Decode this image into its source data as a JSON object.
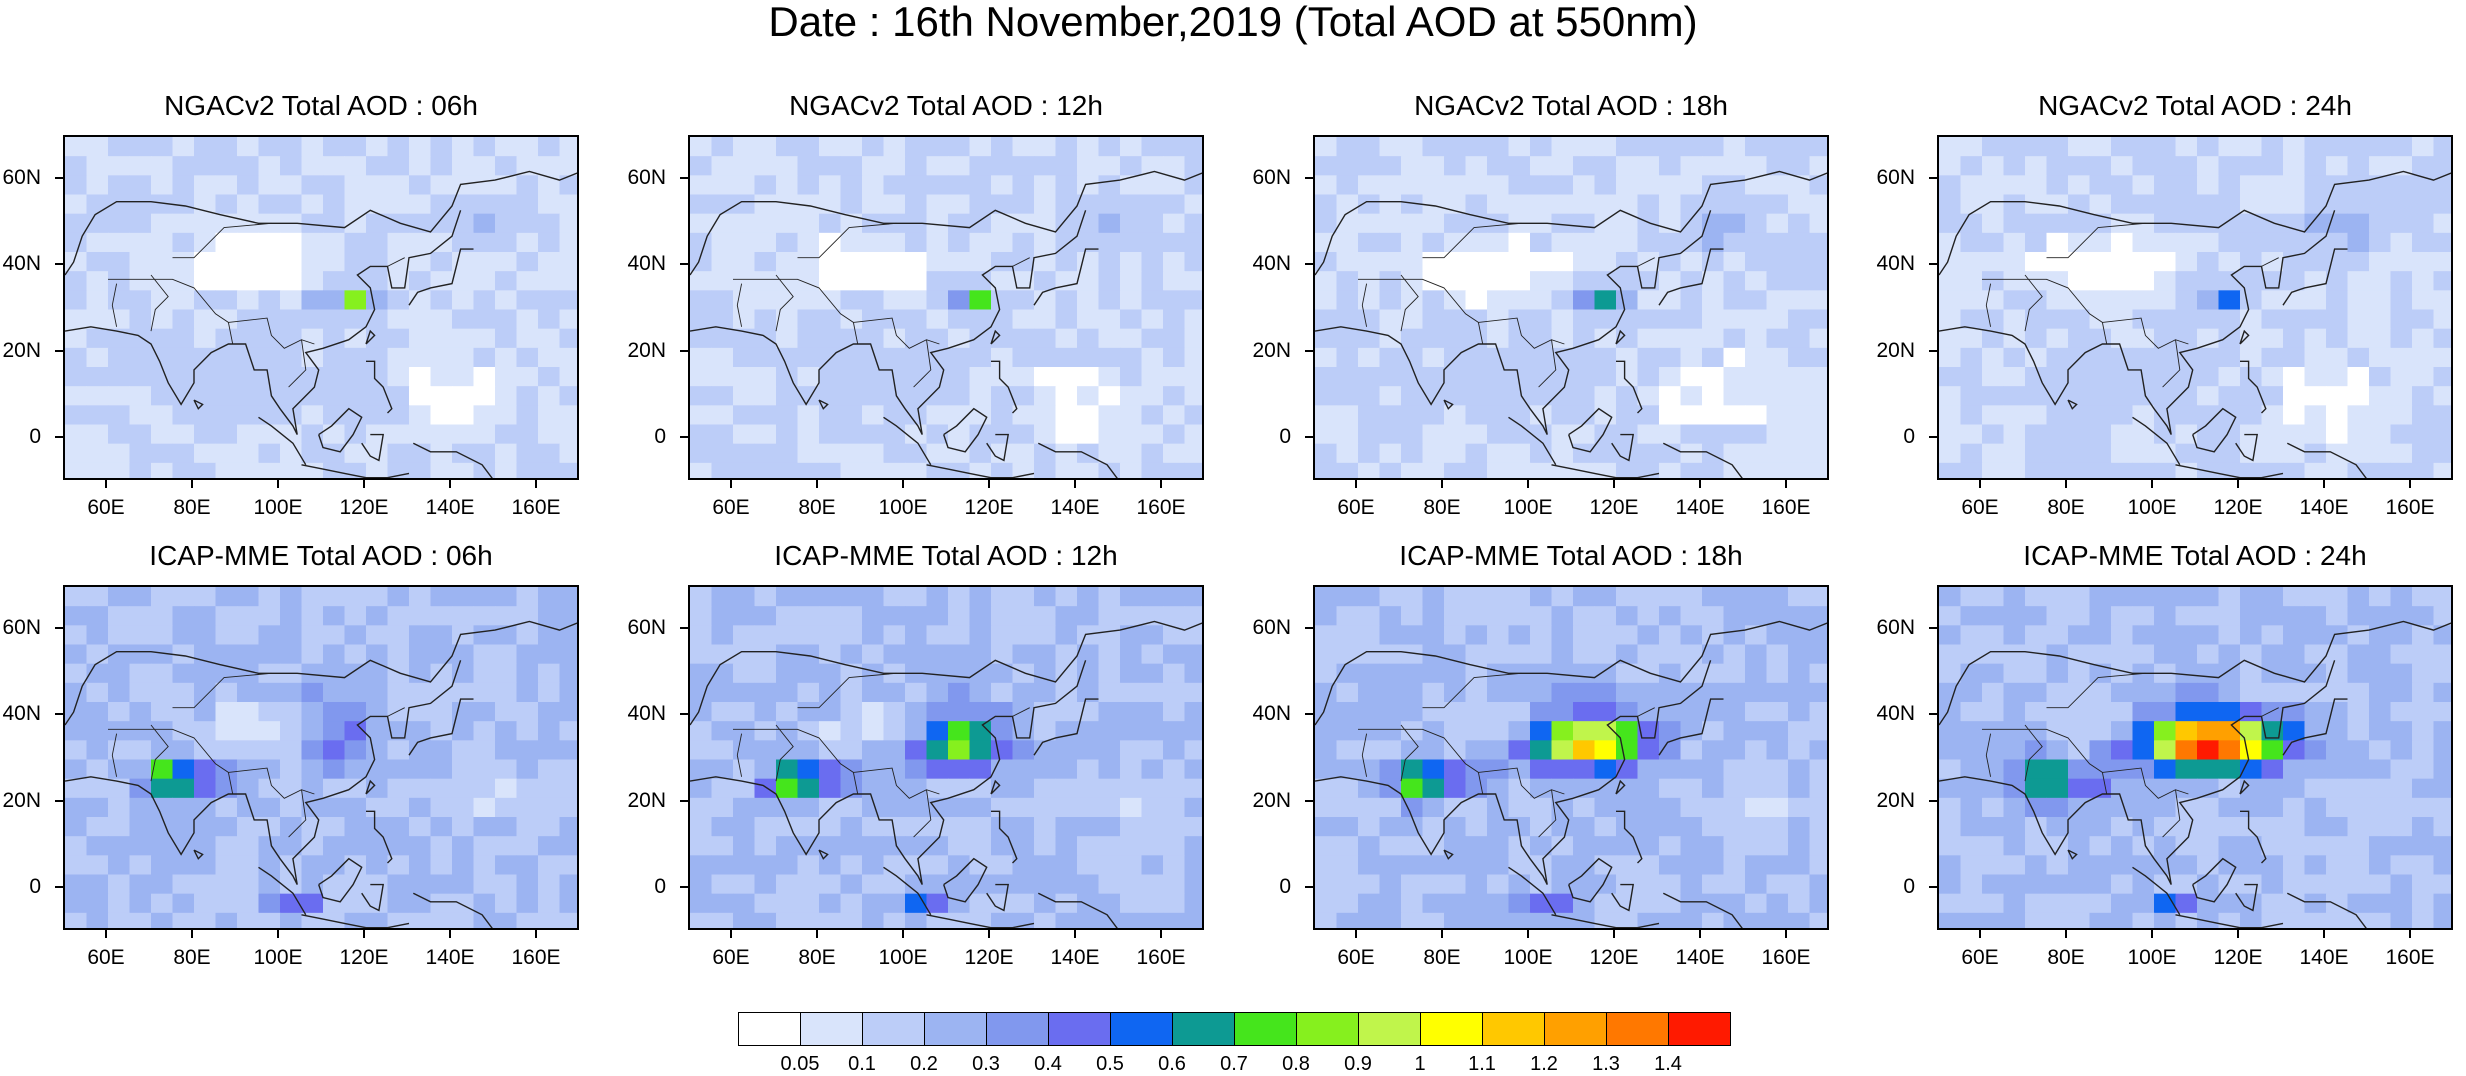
{
  "title": "Date : 16th November,2019 (Total AOD at 550nm)",
  "panels": [
    {
      "title": "NGACv2 Total AOD : 06h",
      "model": "NGACv2",
      "lead": "06h"
    },
    {
      "title": "NGACv2 Total AOD : 12h",
      "model": "NGACv2",
      "lead": "12h"
    },
    {
      "title": "NGACv2 Total AOD : 18h",
      "model": "NGACv2",
      "lead": "18h"
    },
    {
      "title": "NGACv2 Total AOD : 24h",
      "model": "NGACv2",
      "lead": "24h"
    },
    {
      "title": "ICAP-MME Total AOD : 06h",
      "model": "ICAP-MME",
      "lead": "06h"
    },
    {
      "title": "ICAP-MME Total AOD : 12h",
      "model": "ICAP-MME",
      "lead": "12h"
    },
    {
      "title": "ICAP-MME Total AOD : 18h",
      "model": "ICAP-MME",
      "lead": "18h"
    },
    {
      "title": "ICAP-MME Total AOD : 24h",
      "model": "ICAP-MME",
      "lead": "24h"
    }
  ],
  "axes": {
    "lon_range": [
      50,
      170
    ],
    "lat_range": [
      -10,
      70
    ],
    "lon_ticks": [
      "60E",
      "80E",
      "100E",
      "120E",
      "140E",
      "160E"
    ],
    "lat_ticks": [
      "60N",
      "40N",
      "20N",
      "0"
    ]
  },
  "colorbar": {
    "labels": [
      "0.05",
      "0.1",
      "0.2",
      "0.3",
      "0.4",
      "0.5",
      "0.6",
      "0.7",
      "0.8",
      "0.9",
      "1",
      "1.1",
      "1.2",
      "1.3",
      "1.4"
    ],
    "colors": [
      "#ffffff",
      "#d9e4fb",
      "#bccdf8",
      "#9cb4f2",
      "#8198ee",
      "#6a6df0",
      "#0f66f2",
      "#0d9a93",
      "#45e51c",
      "#86f01e",
      "#c0f54b",
      "#ffff00",
      "#ffc800",
      "#ffa000",
      "#ff7800",
      "#ff1a00"
    ]
  }
}
